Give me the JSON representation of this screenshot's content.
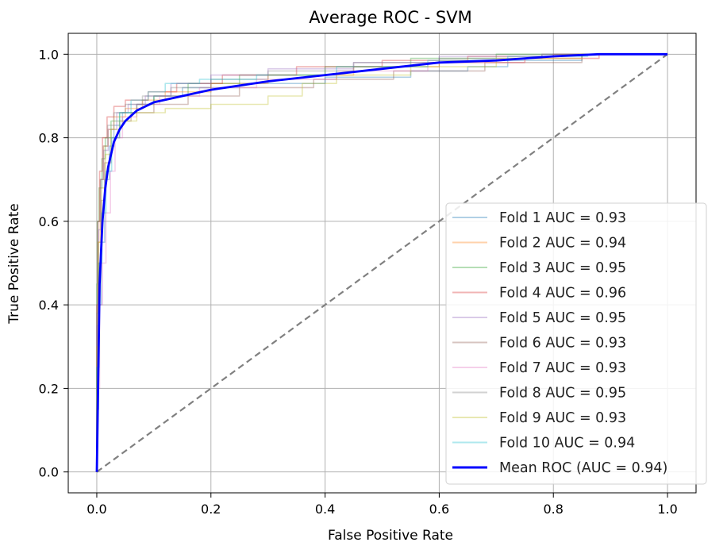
{
  "chart_data": {
    "type": "line",
    "title": "Average ROC - SVM",
    "xlabel": "False Positive Rate",
    "ylabel": "True Positive Rate",
    "xlim": [
      -0.05,
      1.05
    ],
    "ylim": [
      -0.05,
      1.05
    ],
    "grid": true,
    "legend_position": "lower-right",
    "x_ticks": [
      "0.0",
      "0.2",
      "0.4",
      "0.6",
      "0.8",
      "1.0"
    ],
    "y_ticks": [
      "0.0",
      "0.2",
      "0.4",
      "0.6",
      "0.8",
      "1.0"
    ],
    "chance_line": {
      "x": [
        0,
        1
      ],
      "y": [
        0,
        1
      ],
      "color": "#808080",
      "style": "dashed"
    },
    "series": [
      {
        "name": "Fold 1 AUC = 0.93",
        "color": "#1f77b4",
        "alpha": 0.35,
        "x": [
          0,
          0,
          0.003,
          0.003,
          0.008,
          0.008,
          0.014,
          0.014,
          0.022,
          0.022,
          0.03,
          0.03,
          0.045,
          0.045,
          0.07,
          0.07,
          0.1,
          0.1,
          0.15,
          0.15,
          0.25,
          0.25,
          0.4,
          0.4,
          0.55,
          0.55,
          0.65,
          0.65,
          0.72,
          0.72,
          0.85,
          0.85,
          1
        ],
        "y": [
          0,
          0.15,
          0.15,
          0.4,
          0.4,
          0.55,
          0.55,
          0.7,
          0.7,
          0.78,
          0.78,
          0.83,
          0.83,
          0.86,
          0.86,
          0.88,
          0.88,
          0.9,
          0.9,
          0.92,
          0.92,
          0.93,
          0.93,
          0.945,
          0.945,
          0.96,
          0.96,
          0.97,
          0.97,
          0.985,
          0.985,
          1,
          1
        ]
      },
      {
        "name": "Fold 2 AUC = 0.94",
        "color": "#ff7f0e",
        "alpha": 0.35,
        "x": [
          0,
          0,
          0.002,
          0.002,
          0.006,
          0.006,
          0.012,
          0.012,
          0.02,
          0.02,
          0.03,
          0.03,
          0.05,
          0.05,
          0.08,
          0.08,
          0.12,
          0.12,
          0.2,
          0.2,
          0.3,
          0.3,
          0.45,
          0.45,
          0.6,
          0.6,
          0.75,
          0.75,
          0.88,
          0.88,
          1
        ],
        "y": [
          0,
          0.3,
          0.3,
          0.55,
          0.55,
          0.7,
          0.7,
          0.78,
          0.78,
          0.82,
          0.82,
          0.85,
          0.85,
          0.87,
          0.87,
          0.89,
          0.89,
          0.91,
          0.91,
          0.93,
          0.93,
          0.95,
          0.95,
          0.97,
          0.97,
          0.98,
          0.98,
          0.99,
          0.99,
          1,
          1
        ]
      },
      {
        "name": "Fold 3 AUC = 0.95",
        "color": "#2ca02c",
        "alpha": 0.35,
        "x": [
          0,
          0,
          0.001,
          0.001,
          0.004,
          0.004,
          0.009,
          0.009,
          0.015,
          0.015,
          0.025,
          0.025,
          0.04,
          0.04,
          0.07,
          0.07,
          0.1,
          0.1,
          0.16,
          0.16,
          0.25,
          0.25,
          0.4,
          0.4,
          0.55,
          0.55,
          0.7,
          0.7,
          0.85,
          0.85,
          1
        ],
        "y": [
          0,
          0.45,
          0.45,
          0.6,
          0.6,
          0.68,
          0.68,
          0.75,
          0.75,
          0.8,
          0.8,
          0.84,
          0.84,
          0.86,
          0.86,
          0.88,
          0.88,
          0.9,
          0.9,
          0.93,
          0.93,
          0.95,
          0.95,
          0.97,
          0.97,
          0.99,
          0.99,
          1,
          1,
          1,
          1
        ]
      },
      {
        "name": "Fold 4 AUC = 0.96",
        "color": "#d62728",
        "alpha": 0.35,
        "x": [
          0,
          0,
          0.002,
          0.002,
          0.005,
          0.005,
          0.01,
          0.01,
          0.018,
          0.018,
          0.03,
          0.03,
          0.05,
          0.05,
          0.09,
          0.09,
          0.14,
          0.14,
          0.22,
          0.22,
          0.35,
          0.35,
          0.5,
          0.5,
          0.65,
          0.65,
          0.8,
          0.8,
          1
        ],
        "y": [
          0,
          0.4,
          0.4,
          0.6,
          0.6,
          0.72,
          0.72,
          0.8,
          0.8,
          0.85,
          0.85,
          0.875,
          0.875,
          0.89,
          0.89,
          0.91,
          0.91,
          0.93,
          0.93,
          0.95,
          0.95,
          0.97,
          0.97,
          0.985,
          0.985,
          0.995,
          0.995,
          1,
          1
        ]
      },
      {
        "name": "Fold 5 AUC = 0.95",
        "color": "#9467bd",
        "alpha": 0.35,
        "x": [
          0,
          0,
          0.003,
          0.003,
          0.007,
          0.007,
          0.012,
          0.012,
          0.02,
          0.02,
          0.035,
          0.035,
          0.055,
          0.055,
          0.085,
          0.085,
          0.13,
          0.13,
          0.2,
          0.2,
          0.3,
          0.3,
          0.45,
          0.45,
          0.6,
          0.6,
          0.78,
          0.78,
          1
        ],
        "y": [
          0,
          0.35,
          0.35,
          0.58,
          0.58,
          0.7,
          0.7,
          0.77,
          0.77,
          0.82,
          0.82,
          0.86,
          0.86,
          0.88,
          0.88,
          0.9,
          0.9,
          0.93,
          0.93,
          0.95,
          0.95,
          0.965,
          0.965,
          0.98,
          0.98,
          0.995,
          0.995,
          1,
          1
        ]
      },
      {
        "name": "Fold 6 AUC = 0.93",
        "color": "#8c564b",
        "alpha": 0.35,
        "x": [
          0,
          0,
          0.003,
          0.003,
          0.008,
          0.008,
          0.014,
          0.014,
          0.025,
          0.025,
          0.04,
          0.04,
          0.06,
          0.06,
          0.1,
          0.1,
          0.16,
          0.16,
          0.25,
          0.25,
          0.38,
          0.38,
          0.52,
          0.52,
          0.68,
          0.68,
          0.85,
          0.85,
          1
        ],
        "y": [
          0,
          0.25,
          0.25,
          0.5,
          0.5,
          0.65,
          0.65,
          0.74,
          0.74,
          0.8,
          0.8,
          0.84,
          0.84,
          0.86,
          0.86,
          0.88,
          0.88,
          0.9,
          0.9,
          0.92,
          0.92,
          0.94,
          0.94,
          0.96,
          0.96,
          0.98,
          0.98,
          1,
          1
        ]
      },
      {
        "name": "Fold 7 AUC = 0.93",
        "color": "#e377c2",
        "alpha": 0.35,
        "x": [
          0,
          0,
          0.005,
          0.005,
          0.01,
          0.01,
          0.016,
          0.016,
          0.024,
          0.024,
          0.032,
          0.032,
          0.045,
          0.045,
          0.07,
          0.07,
          0.11,
          0.11,
          0.18,
          0.18,
          0.28,
          0.28,
          0.42,
          0.42,
          0.58,
          0.58,
          0.75,
          0.75,
          0.88,
          0.88,
          1
        ],
        "y": [
          0,
          0.2,
          0.2,
          0.4,
          0.4,
          0.5,
          0.5,
          0.62,
          0.62,
          0.72,
          0.72,
          0.8,
          0.8,
          0.85,
          0.85,
          0.88,
          0.88,
          0.9,
          0.9,
          0.92,
          0.92,
          0.94,
          0.94,
          0.96,
          0.96,
          0.98,
          0.98,
          0.99,
          0.99,
          1,
          1
        ]
      },
      {
        "name": "Fold 8 AUC = 0.95",
        "color": "#7f7f7f",
        "alpha": 0.35,
        "x": [
          0,
          0,
          0.002,
          0.002,
          0.006,
          0.006,
          0.011,
          0.011,
          0.019,
          0.019,
          0.03,
          0.03,
          0.05,
          0.05,
          0.08,
          0.08,
          0.13,
          0.13,
          0.2,
          0.2,
          0.3,
          0.3,
          0.45,
          0.45,
          0.6,
          0.6,
          0.78,
          0.78,
          1
        ],
        "y": [
          0,
          0.38,
          0.38,
          0.6,
          0.6,
          0.7,
          0.7,
          0.78,
          0.78,
          0.83,
          0.83,
          0.86,
          0.86,
          0.88,
          0.88,
          0.9,
          0.9,
          0.92,
          0.92,
          0.94,
          0.94,
          0.96,
          0.96,
          0.98,
          0.98,
          0.99,
          0.99,
          1,
          1
        ]
      },
      {
        "name": "Fold 9 AUC = 0.93",
        "color": "#bcbd22",
        "alpha": 0.35,
        "x": [
          0,
          0,
          0.003,
          0.003,
          0.008,
          0.008,
          0.015,
          0.015,
          0.025,
          0.025,
          0.04,
          0.04,
          0.07,
          0.07,
          0.12,
          0.12,
          0.2,
          0.2,
          0.3,
          0.3,
          0.36,
          0.36,
          0.42,
          0.42,
          0.55,
          0.55,
          0.7,
          0.7,
          0.85,
          0.85,
          1
        ],
        "y": [
          0,
          0.3,
          0.3,
          0.55,
          0.55,
          0.68,
          0.68,
          0.76,
          0.76,
          0.82,
          0.82,
          0.84,
          0.84,
          0.86,
          0.86,
          0.87,
          0.87,
          0.88,
          0.88,
          0.9,
          0.9,
          0.93,
          0.93,
          0.95,
          0.95,
          0.97,
          0.97,
          0.99,
          0.99,
          1,
          1
        ]
      },
      {
        "name": "Fold 10 AUC = 0.94",
        "color": "#17becf",
        "alpha": 0.35,
        "x": [
          0,
          0,
          0.004,
          0.004,
          0.009,
          0.009,
          0.016,
          0.016,
          0.026,
          0.026,
          0.04,
          0.04,
          0.06,
          0.06,
          0.09,
          0.09,
          0.12,
          0.12,
          0.18,
          0.18,
          0.28,
          0.28,
          0.42,
          0.42,
          0.58,
          0.58,
          0.72,
          0.72,
          0.86,
          0.86,
          1
        ],
        "y": [
          0,
          0.25,
          0.25,
          0.5,
          0.5,
          0.62,
          0.62,
          0.72,
          0.72,
          0.8,
          0.8,
          0.86,
          0.86,
          0.89,
          0.89,
          0.91,
          0.91,
          0.93,
          0.93,
          0.94,
          0.94,
          0.95,
          0.95,
          0.97,
          0.97,
          0.985,
          0.985,
          0.995,
          0.995,
          1,
          1
        ]
      },
      {
        "name": "Mean ROC (AUC = 0.94)",
        "color": "#0000ff",
        "alpha": 1,
        "bold": true,
        "x": [
          0,
          0.005,
          0.01,
          0.015,
          0.02,
          0.03,
          0.04,
          0.05,
          0.07,
          0.1,
          0.15,
          0.2,
          0.3,
          0.4,
          0.5,
          0.6,
          0.7,
          0.8,
          0.88,
          1
        ],
        "y": [
          0,
          0.45,
          0.6,
          0.68,
          0.73,
          0.79,
          0.82,
          0.84,
          0.865,
          0.885,
          0.9,
          0.915,
          0.935,
          0.95,
          0.965,
          0.98,
          0.985,
          0.995,
          1,
          1
        ]
      }
    ]
  }
}
